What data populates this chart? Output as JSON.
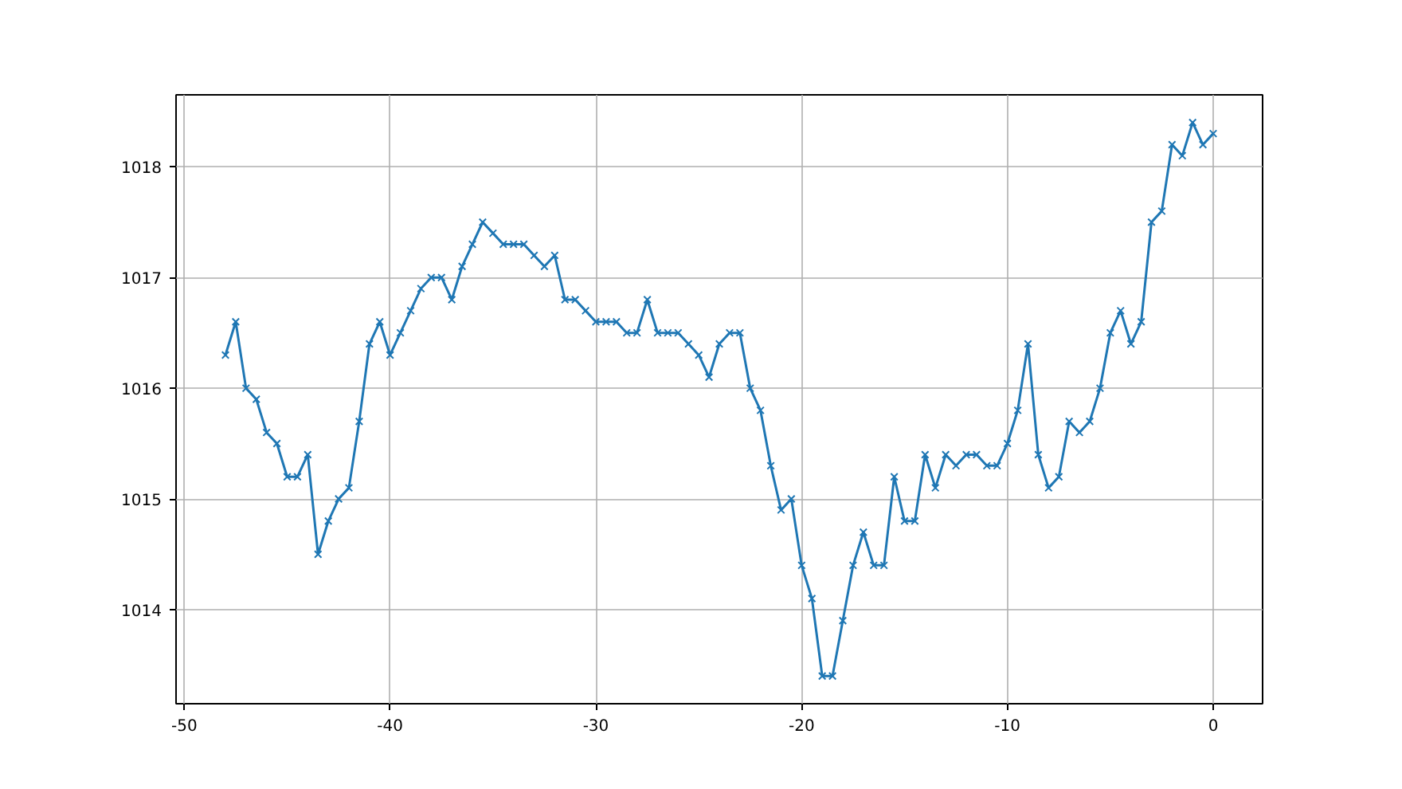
{
  "chart_data": {
    "type": "line",
    "x": [
      -48,
      -47.5,
      -47,
      -46.5,
      -46,
      -45.5,
      -45,
      -44.5,
      -44,
      -43.5,
      -43,
      -42.5,
      -42,
      -41.5,
      -41,
      -40.5,
      -40,
      -39.5,
      -39,
      -38.5,
      -38,
      -37.5,
      -37,
      -36.5,
      -36,
      -35.5,
      -35,
      -34.5,
      -34,
      -33.5,
      -33,
      -32.5,
      -32,
      -31.5,
      -31,
      -30.5,
      -30,
      -29.5,
      -29,
      -28.5,
      -28,
      -27.5,
      -27,
      -26.5,
      -26,
      -25.5,
      -25,
      -24.5,
      -24,
      -23.5,
      -23,
      -22.5,
      -22,
      -21.5,
      -21,
      -20.5,
      -20,
      -19.5,
      -19,
      -18.5,
      -18,
      -17.5,
      -17,
      -16.5,
      -16,
      -15.5,
      -15,
      -14.5,
      -14,
      -13.5,
      -13,
      -12.5,
      -12,
      -11.5,
      -11,
      -10.5,
      -10,
      -9.5,
      -9,
      -8.5,
      -8,
      -7.5,
      -7,
      -6.5,
      -6,
      -5.5,
      -5,
      -4.5,
      -4,
      -3.5,
      -3,
      -2.5,
      -2,
      -1.5,
      -1,
      -0.5,
      0
    ],
    "series": [
      {
        "color": "#1f77b4",
        "values": [
          1016.3,
          1016.6,
          1016.0,
          1015.9,
          1015.6,
          1015.5,
          1015.2,
          1015.2,
          1015.4,
          1014.5,
          1014.8,
          1015.0,
          1015.1,
          1015.7,
          1016.4,
          1016.6,
          1016.3,
          1016.5,
          1016.7,
          1016.9,
          1017.0,
          1017.0,
          1016.8,
          1017.1,
          1017.3,
          1017.5,
          1017.4,
          1017.3,
          1017.3,
          1017.3,
          1017.2,
          1017.1,
          1017.2,
          1016.8,
          1016.8,
          1016.7,
          1016.6,
          1016.6,
          1016.6,
          1016.5,
          1016.5,
          1016.8,
          1016.5,
          1016.5,
          1016.5,
          1016.4,
          1016.3,
          1016.1,
          1016.4,
          1016.5,
          1016.5,
          1016.0,
          1015.8,
          1015.3,
          1014.9,
          1015.0,
          1014.4,
          1014.1,
          1013.4,
          1013.4,
          1013.9,
          1014.4,
          1014.7,
          1014.4,
          1014.4,
          1015.2,
          1014.8,
          1014.8,
          1015.4,
          1015.1,
          1015.4,
          1015.3,
          1015.4,
          1015.4,
          1015.3,
          1015.3,
          1015.5,
          1015.8,
          1016.4,
          1015.4,
          1015.1,
          1015.2,
          1015.7,
          1015.6,
          1015.7,
          1016.0,
          1016.5,
          1016.7,
          1016.4,
          1016.6,
          1017.5,
          1017.6,
          1018.2,
          1018.1,
          1018.4,
          1018.2,
          1018.3
        ]
      }
    ],
    "xlim": [
      -50.4,
      2.4
    ],
    "ylim": [
      1013.15,
      1018.65
    ],
    "xticks": [
      -50,
      -40,
      -30,
      -20,
      -10,
      0
    ],
    "yticks": [
      1014,
      1015,
      1016,
      1017,
      1018
    ],
    "grid": true,
    "marker": "cross",
    "line_style": "solid"
  }
}
